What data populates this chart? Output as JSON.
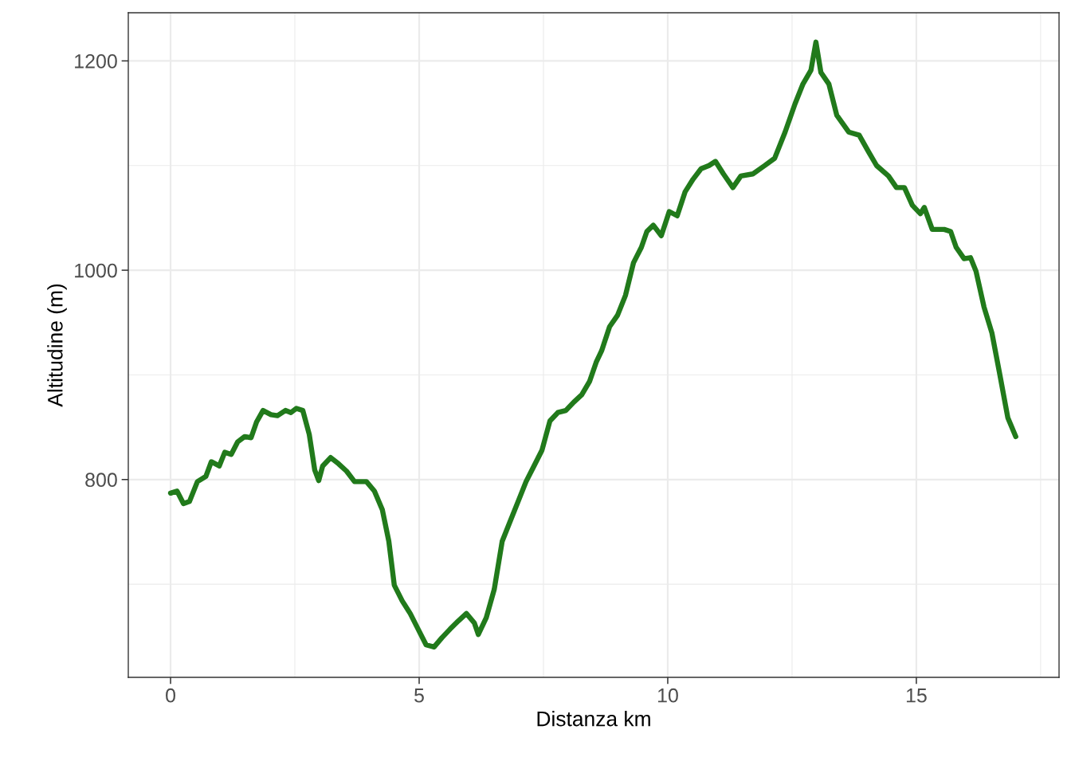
{
  "chart_data": {
    "type": "line",
    "xlabel": "Distanza km",
    "ylabel": "Altitudine (m)",
    "x": [
      0,
      0.13,
      0.26,
      0.38,
      0.54,
      0.71,
      0.82,
      0.98,
      1.09,
      1.22,
      1.35,
      1.49,
      1.62,
      1.73,
      1.86,
      2.02,
      2.15,
      2.31,
      2.42,
      2.53,
      2.66,
      2.79,
      2.9,
      2.98,
      3.06,
      3.22,
      3.38,
      3.54,
      3.7,
      3.94,
      4.1,
      4.26,
      4.39,
      4.5,
      4.66,
      4.82,
      4.98,
      5.14,
      5.3,
      5.46,
      5.62,
      5.79,
      5.95,
      6.11,
      6.19,
      6.35,
      6.51,
      6.67,
      6.83,
      6.99,
      7.15,
      7.31,
      7.47,
      7.63,
      7.79,
      7.95,
      8.11,
      8.27,
      8.43,
      8.56,
      8.67,
      8.83,
      8.99,
      9.15,
      9.31,
      9.47,
      9.58,
      9.71,
      9.87,
      10.03,
      10.19,
      10.35,
      10.51,
      10.67,
      10.83,
      10.96,
      11.12,
      11.31,
      11.47,
      11.71,
      11.95,
      12.15,
      12.36,
      12.56,
      12.72,
      12.88,
      12.98,
      13.08,
      13.24,
      13.4,
      13.64,
      13.85,
      14.04,
      14.2,
      14.44,
      14.6,
      14.76,
      14.92,
      15.08,
      15.16,
      15.32,
      15.56,
      15.69,
      15.8,
      15.96,
      16.09,
      16.2,
      16.36,
      16.52,
      16.68,
      16.84,
      17.0
    ],
    "series": [
      {
        "color": "#217a1b",
        "values": [
          787,
          789,
          777,
          779,
          798,
          803,
          817,
          813,
          826,
          824,
          836,
          841,
          840,
          855,
          866,
          862,
          861,
          866,
          864,
          868,
          866,
          843,
          809,
          799,
          813,
          821,
          815,
          808,
          798,
          798,
          789,
          771,
          741,
          699,
          684,
          672,
          657,
          642,
          640,
          649,
          657,
          665,
          672,
          663,
          652,
          668,
          695,
          741,
          760,
          779,
          798,
          813,
          828,
          856,
          864,
          866,
          874,
          881,
          894,
          912,
          923,
          946,
          957,
          976,
          1007,
          1022,
          1037,
          1043,
          1033,
          1056,
          1052,
          1075,
          1087,
          1097,
          1100,
          1104,
          1092,
          1079,
          1090,
          1092,
          1100,
          1107,
          1132,
          1159,
          1178,
          1191,
          1218,
          1189,
          1178,
          1148,
          1132,
          1129,
          1113,
          1100,
          1090,
          1079,
          1079,
          1062,
          1054,
          1060,
          1039,
          1039,
          1037,
          1022,
          1011,
          1012,
          999,
          965,
          940,
          900,
          859,
          841
        ]
      }
    ],
    "xlim": [
      -0.85,
      17.87
    ],
    "ylim": [
      611,
      1246
    ],
    "xticks": [
      0,
      {
        "value": 2.5,
        "label": null
      },
      5,
      {
        "value": 7.5,
        "label": null
      },
      10,
      {
        "value": 12.5,
        "label": null
      },
      15,
      {
        "value": 17.5,
        "label": null
      }
    ],
    "yticks": [
      {
        "value": 700,
        "label": null
      },
      800,
      {
        "value": 900,
        "label": null
      },
      1000,
      {
        "value": 1100,
        "label": null
      },
      1200
    ],
    "grid": true,
    "line_style": "solid",
    "marker": "none"
  }
}
